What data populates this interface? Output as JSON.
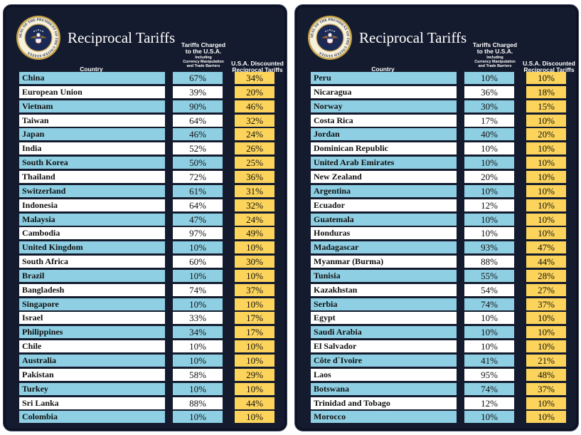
{
  "colors": {
    "panel_bg": "#141b2e",
    "row_blue": "#8ecfe3",
    "row_white": "#ffffff",
    "discount_yellow": "#fcd45c",
    "seal_gold": "#c9a54a"
  },
  "header": {
    "title": "Reciprocal Tariffs",
    "country_label": "Country",
    "charged_label_1": "Tariffs Charged",
    "charged_label_2": "to the U.S.A.",
    "charged_sub_1": "Including",
    "charged_sub_2": "Currency Manipulation",
    "charged_sub_3": "and Trade Barriers",
    "discount_label_1": "U.S.A. Discounted",
    "discount_label_2": "Reciprocal Tariffs"
  },
  "seal": {
    "ring_text": "SEAL OF THE PRESIDENT OF THE UNITED STATES",
    "icon": "presidential-seal-icon"
  },
  "chart_data": [
    {
      "type": "table",
      "title": "Reciprocal Tariffs",
      "columns": [
        "Country",
        "Tariffs Charged to the U.S.A. Including Currency Manipulation and Trade Barriers",
        "U.S.A. Discounted Reciprocal Tariffs"
      ],
      "rows": [
        {
          "country": "China",
          "charged": "67%",
          "discounted": "34%"
        },
        {
          "country": "European Union",
          "charged": "39%",
          "discounted": "20%"
        },
        {
          "country": "Vietnam",
          "charged": "90%",
          "discounted": "46%"
        },
        {
          "country": "Taiwan",
          "charged": "64%",
          "discounted": "32%"
        },
        {
          "country": "Japan",
          "charged": "46%",
          "discounted": "24%"
        },
        {
          "country": "India",
          "charged": "52%",
          "discounted": "26%"
        },
        {
          "country": "South Korea",
          "charged": "50%",
          "discounted": "25%"
        },
        {
          "country": "Thailand",
          "charged": "72%",
          "discounted": "36%"
        },
        {
          "country": "Switzerland",
          "charged": "61%",
          "discounted": "31%"
        },
        {
          "country": "Indonesia",
          "charged": "64%",
          "discounted": "32%"
        },
        {
          "country": "Malaysia",
          "charged": "47%",
          "discounted": "24%"
        },
        {
          "country": "Cambodia",
          "charged": "97%",
          "discounted": "49%"
        },
        {
          "country": "United Kingdom",
          "charged": "10%",
          "discounted": "10%"
        },
        {
          "country": "South Africa",
          "charged": "60%",
          "discounted": "30%"
        },
        {
          "country": "Brazil",
          "charged": "10%",
          "discounted": "10%"
        },
        {
          "country": "Bangladesh",
          "charged": "74%",
          "discounted": "37%"
        },
        {
          "country": "Singapore",
          "charged": "10%",
          "discounted": "10%"
        },
        {
          "country": "Israel",
          "charged": "33%",
          "discounted": "17%"
        },
        {
          "country": "Philippines",
          "charged": "34%",
          "discounted": "17%"
        },
        {
          "country": "Chile",
          "charged": "10%",
          "discounted": "10%"
        },
        {
          "country": "Australia",
          "charged": "10%",
          "discounted": "10%"
        },
        {
          "country": "Pakistan",
          "charged": "58%",
          "discounted": "29%"
        },
        {
          "country": "Turkey",
          "charged": "10%",
          "discounted": "10%"
        },
        {
          "country": "Sri Lanka",
          "charged": "88%",
          "discounted": "44%"
        },
        {
          "country": "Colombia",
          "charged": "10%",
          "discounted": "10%"
        }
      ]
    },
    {
      "type": "table",
      "title": "Reciprocal Tariffs",
      "columns": [
        "Country",
        "Tariffs Charged to the U.S.A. Including Currency Manipulation and Trade Barriers",
        "U.S.A. Discounted Reciprocal Tariffs"
      ],
      "rows": [
        {
          "country": "Peru",
          "charged": "10%",
          "discounted": "10%"
        },
        {
          "country": "Nicaragua",
          "charged": "36%",
          "discounted": "18%"
        },
        {
          "country": "Norway",
          "charged": "30%",
          "discounted": "15%"
        },
        {
          "country": "Costa Rica",
          "charged": "17%",
          "discounted": "10%"
        },
        {
          "country": "Jordan",
          "charged": "40%",
          "discounted": "20%"
        },
        {
          "country": "Dominican Republic",
          "charged": "10%",
          "discounted": "10%"
        },
        {
          "country": "United Arab Emirates",
          "charged": "10%",
          "discounted": "10%"
        },
        {
          "country": "New Zealand",
          "charged": "20%",
          "discounted": "10%"
        },
        {
          "country": "Argentina",
          "charged": "10%",
          "discounted": "10%"
        },
        {
          "country": "Ecuador",
          "charged": "12%",
          "discounted": "10%"
        },
        {
          "country": "Guatemala",
          "charged": "10%",
          "discounted": "10%"
        },
        {
          "country": "Honduras",
          "charged": "10%",
          "discounted": "10%"
        },
        {
          "country": "Madagascar",
          "charged": "93%",
          "discounted": "47%"
        },
        {
          "country": "Myanmar (Burma)",
          "charged": "88%",
          "discounted": "44%"
        },
        {
          "country": "Tunisia",
          "charged": "55%",
          "discounted": "28%"
        },
        {
          "country": "Kazakhstan",
          "charged": "54%",
          "discounted": "27%"
        },
        {
          "country": "Serbia",
          "charged": "74%",
          "discounted": "37%"
        },
        {
          "country": "Egypt",
          "charged": "10%",
          "discounted": "10%"
        },
        {
          "country": "Saudi Arabia",
          "charged": "10%",
          "discounted": "10%"
        },
        {
          "country": "El Salvador",
          "charged": "10%",
          "discounted": "10%"
        },
        {
          "country": "Côte d`Ivoire",
          "charged": "41%",
          "discounted": "21%"
        },
        {
          "country": "Laos",
          "charged": "95%",
          "discounted": "48%"
        },
        {
          "country": "Botswana",
          "charged": "74%",
          "discounted": "37%"
        },
        {
          "country": "Trinidad and Tobago",
          "charged": "12%",
          "discounted": "10%"
        },
        {
          "country": "Morocco",
          "charged": "10%",
          "discounted": "10%"
        }
      ]
    }
  ]
}
